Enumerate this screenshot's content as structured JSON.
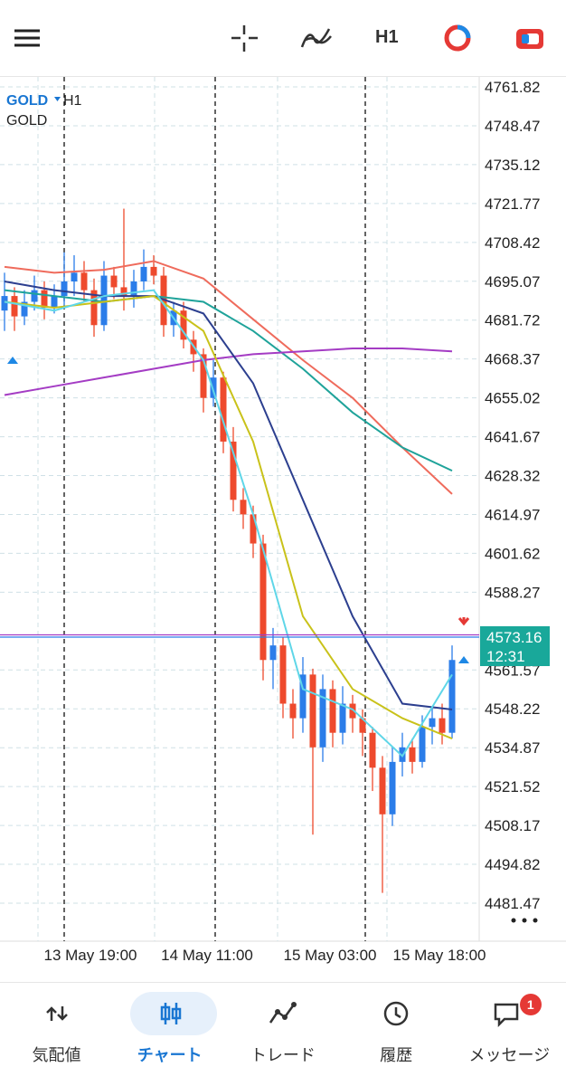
{
  "toolbar": {
    "timeframe": "H1"
  },
  "chart_data": {
    "type": "candlestick",
    "symbol": "GOLD",
    "timeframe": "H1",
    "subtitle": "GOLD",
    "ylim": [
      4468.42,
      4765.24
    ],
    "yticks": [
      4761.82,
      4748.47,
      4735.12,
      4721.77,
      4708.42,
      4695.07,
      4681.72,
      4668.37,
      4655.02,
      4641.67,
      4628.32,
      4614.97,
      4601.62,
      4588.27,
      4561.57,
      4548.22,
      4534.87,
      4521.52,
      4508.17,
      4494.82,
      4481.47
    ],
    "x_labels": [
      "13 May 19:00",
      "14 May 11:00",
      "15 May 03:00",
      "15 May 18:00"
    ],
    "open": [
      4685,
      4690,
      4683,
      4688,
      4692,
      4686,
      4690,
      4695,
      4698,
      4692,
      4680,
      4697,
      4693,
      4690,
      4695,
      4700,
      4697,
      4680,
      4685,
      4675,
      4670,
      4655,
      4662,
      4640,
      4620,
      4615,
      4605,
      4565,
      4570,
      4550,
      4545,
      4560,
      4535,
      4555,
      4540,
      4550,
      4545,
      4540,
      4528,
      4512,
      4530,
      4535,
      4530,
      4542,
      4545,
      4540
    ],
    "high": [
      4698,
      4693,
      4692,
      4697,
      4695,
      4694,
      4705,
      4704,
      4702,
      4696,
      4702,
      4700,
      4720,
      4699,
      4706,
      4704,
      4700,
      4688,
      4688,
      4678,
      4672,
      4668,
      4664,
      4645,
      4624,
      4618,
      4608,
      4576,
      4573,
      4555,
      4566,
      4562,
      4560,
      4558,
      4556,
      4553,
      4548,
      4542,
      4532,
      4535,
      4540,
      4538,
      4546,
      4549,
      4550,
      4570
    ],
    "low": [
      4678,
      4678,
      4680,
      4685,
      4682,
      4684,
      4686,
      4690,
      4688,
      4676,
      4678,
      4689,
      4685,
      4686,
      4692,
      4694,
      4676,
      4676,
      4672,
      4664,
      4650,
      4652,
      4636,
      4616,
      4610,
      4600,
      4558,
      4555,
      4545,
      4538,
      4540,
      4505,
      4530,
      4535,
      4536,
      4540,
      4532,
      4520,
      4485,
      4508,
      4525,
      4526,
      4528,
      4536,
      4536,
      4538
    ],
    "close": [
      4690,
      4683,
      4688,
      4692,
      4686,
      4690,
      4695,
      4698,
      4692,
      4680,
      4697,
      4693,
      4690,
      4695,
      4700,
      4697,
      4680,
      4685,
      4675,
      4670,
      4655,
      4662,
      4640,
      4620,
      4615,
      4605,
      4565,
      4570,
      4550,
      4545,
      4560,
      4535,
      4555,
      4540,
      4550,
      4545,
      4540,
      4528,
      4512,
      4530,
      4535,
      4530,
      4542,
      4545,
      4540,
      4565
    ],
    "up_color": "#2b7de9",
    "down_color": "#ee4a2d",
    "series": [
      {
        "color": "#ef6b5c",
        "x": [
          0,
          5,
          10,
          15,
          20,
          25,
          30,
          35,
          40,
          45
        ],
        "values": [
          4700,
          4698,
          4699,
          4702,
          4696,
          4682,
          4668,
          4655,
          4638,
          4622
        ]
      },
      {
        "color": "#1fa39a",
        "x": [
          0,
          5,
          10,
          15,
          20,
          25,
          30,
          35,
          40,
          45
        ],
        "values": [
          4692,
          4690,
          4688,
          4690,
          4688,
          4678,
          4665,
          4650,
          4638,
          4630
        ]
      },
      {
        "color": "#a43cc4",
        "x": [
          0,
          5,
          10,
          15,
          20,
          25,
          30,
          35,
          40,
          45
        ],
        "values": [
          4656,
          4659,
          4662,
          4665,
          4668,
          4670,
          4671,
          4672,
          4672,
          4671
        ]
      },
      {
        "color": "#2c3f8f",
        "x": [
          0,
          5,
          10,
          15,
          20,
          25,
          30,
          35,
          40,
          45
        ],
        "values": [
          4695,
          4692,
          4690,
          4690,
          4684,
          4660,
          4620,
          4580,
          4550,
          4548
        ]
      },
      {
        "color": "#c9c21a",
        "x": [
          0,
          5,
          10,
          15,
          20,
          25,
          30,
          35,
          40,
          45
        ],
        "values": [
          4688,
          4686,
          4688,
          4690,
          4678,
          4640,
          4580,
          4555,
          4545,
          4538
        ]
      },
      {
        "color": "#5fd6e8",
        "x": [
          0,
          5,
          10,
          15,
          20,
          25,
          30,
          35,
          40,
          45
        ],
        "values": [
          4688,
          4685,
          4690,
          4692,
          4668,
          4615,
          4555,
          4548,
          4532,
          4560
        ]
      }
    ],
    "current_price": 4573.16,
    "timer": "12:31",
    "grid": true
  },
  "nav": {
    "items": [
      "気配値",
      "チャート",
      "トレード",
      "履歴",
      "メッセージ"
    ],
    "badge": 1
  }
}
